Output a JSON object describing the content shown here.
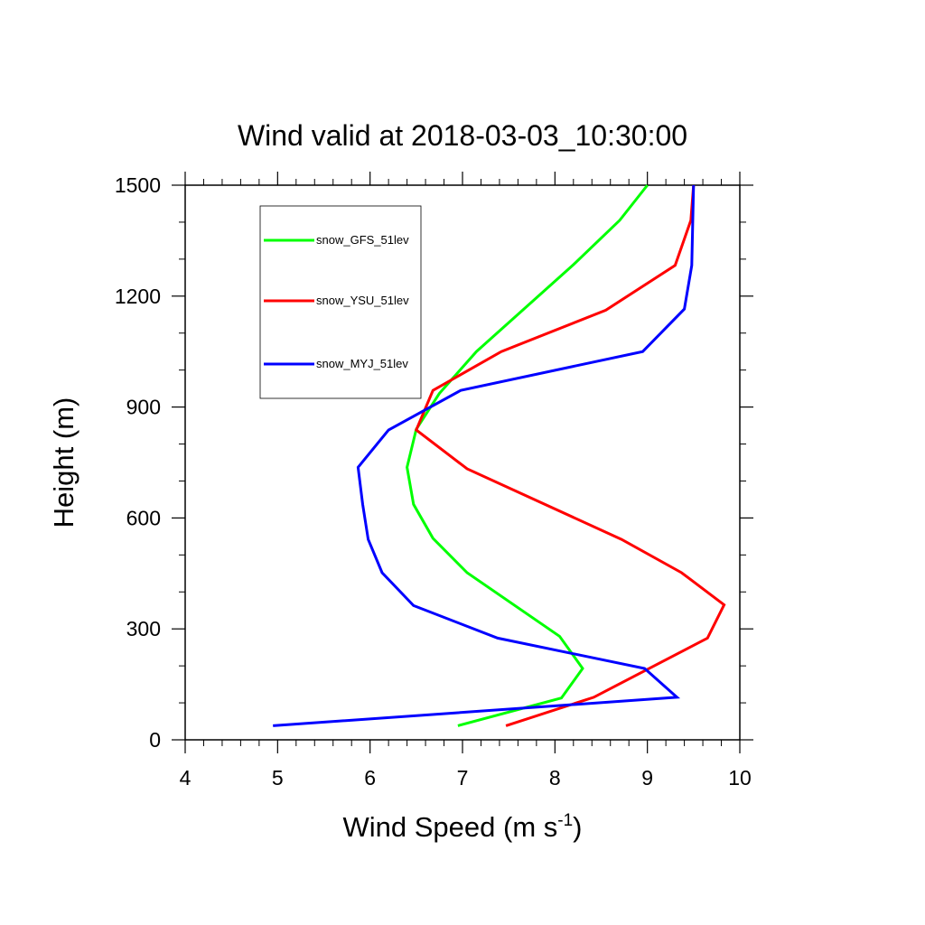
{
  "chart_data": {
    "type": "line",
    "title": "Wind valid at 2018-03-03_10:30:00",
    "xlabel": "Wind Speed (m s",
    "xlabel_sup": "-1",
    "xlabel_end": ")",
    "ylabel": "Height (m)",
    "xlim": [
      4,
      10
    ],
    "ylim": [
      0,
      1500
    ],
    "x_ticks": [
      4,
      5,
      6,
      7,
      8,
      9,
      10
    ],
    "x_tick_labels": [
      "4",
      "5",
      "6",
      "7",
      "8",
      "9",
      "10"
    ],
    "y_ticks": [
      0,
      300,
      600,
      900,
      1200,
      1500
    ],
    "y_tick_labels": [
      "0",
      "300",
      "600",
      "900",
      "1200",
      "1500"
    ],
    "legend_position": "top-left",
    "grid": false,
    "series": [
      {
        "name": "snow_GFS_51lev",
        "color": "#00ff00",
        "points": [
          [
            6.95,
            38
          ],
          [
            8.07,
            113
          ],
          [
            8.3,
            193
          ],
          [
            8.05,
            280
          ],
          [
            7.05,
            452
          ],
          [
            6.68,
            545
          ],
          [
            6.47,
            637
          ],
          [
            6.4,
            737
          ],
          [
            6.5,
            840
          ],
          [
            6.75,
            937
          ],
          [
            7.15,
            1050
          ],
          [
            8.2,
            1285
          ],
          [
            8.7,
            1405
          ],
          [
            9.0,
            1500
          ]
        ]
      },
      {
        "name": "snow_YSU_51lev",
        "color": "#ff0000",
        "points": [
          [
            7.47,
            38
          ],
          [
            8.42,
            115
          ],
          [
            9.65,
            275
          ],
          [
            9.83,
            365
          ],
          [
            9.37,
            452
          ],
          [
            8.72,
            542
          ],
          [
            7.05,
            733
          ],
          [
            6.5,
            838
          ],
          [
            6.68,
            945
          ],
          [
            7.42,
            1050
          ],
          [
            8.55,
            1162
          ],
          [
            9.3,
            1283
          ],
          [
            9.47,
            1405
          ],
          [
            9.5,
            1500
          ]
        ]
      },
      {
        "name": "snow_MYJ_51lev",
        "color": "#0000ff",
        "points": [
          [
            4.95,
            38
          ],
          [
            9.32,
            115
          ],
          [
            8.97,
            193
          ],
          [
            7.38,
            275
          ],
          [
            6.47,
            363
          ],
          [
            6.13,
            452
          ],
          [
            5.98,
            542
          ],
          [
            5.92,
            637
          ],
          [
            5.87,
            737
          ],
          [
            6.2,
            838
          ],
          [
            6.98,
            945
          ],
          [
            8.95,
            1050
          ],
          [
            9.4,
            1165
          ],
          [
            9.48,
            1283
          ],
          [
            9.5,
            1500
          ]
        ]
      }
    ]
  }
}
